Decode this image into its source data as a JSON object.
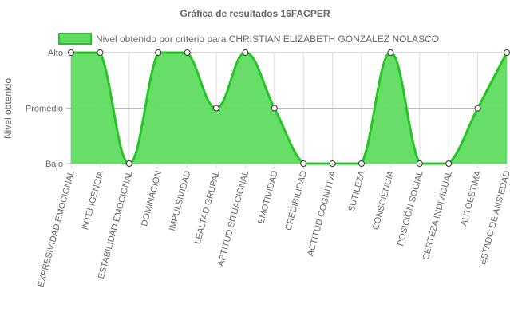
{
  "chart_data": {
    "type": "area",
    "title": "Gráfica de resultados 16FACPER",
    "ylabel": "Nivel obtenido",
    "xlabel": "",
    "y_levels": [
      "Bajo",
      "Promedio",
      "Alto"
    ],
    "ylim": [
      0,
      2
    ],
    "categories": [
      "EXPRESIVIDAD EMOCIONAL",
      "INTELIGENCIA",
      "ESTABILIDAD EMOCIONAL",
      "DOMINACIÓN",
      "IMPULSIVIDAD",
      "LEALTAD GRUPAL",
      "APTITUD SITUACIONAL",
      "EMOTIVIDAD",
      "CREDIBILIDAD",
      "ACTITUD COGNITIVA",
      "SUTILEZA",
      "CONSCIENCIA",
      "POSICIÓN SOCIAL",
      "CERTEZA INDIVIDUAL",
      "AUTOESTIMA",
      "ESTADO DE ANSIEDAD"
    ],
    "series": [
      {
        "name": "Nivel obtenido por criterio para CHRISTIAN ELIZABETH GONZALEZ NOLASCO",
        "values": [
          2,
          2,
          0,
          2,
          2,
          1,
          2,
          1,
          0,
          0,
          0,
          2,
          0,
          0,
          1,
          2
        ],
        "color": "#27c427",
        "fill": "#5fdc5f"
      }
    ],
    "grid": true,
    "legend": "top"
  }
}
